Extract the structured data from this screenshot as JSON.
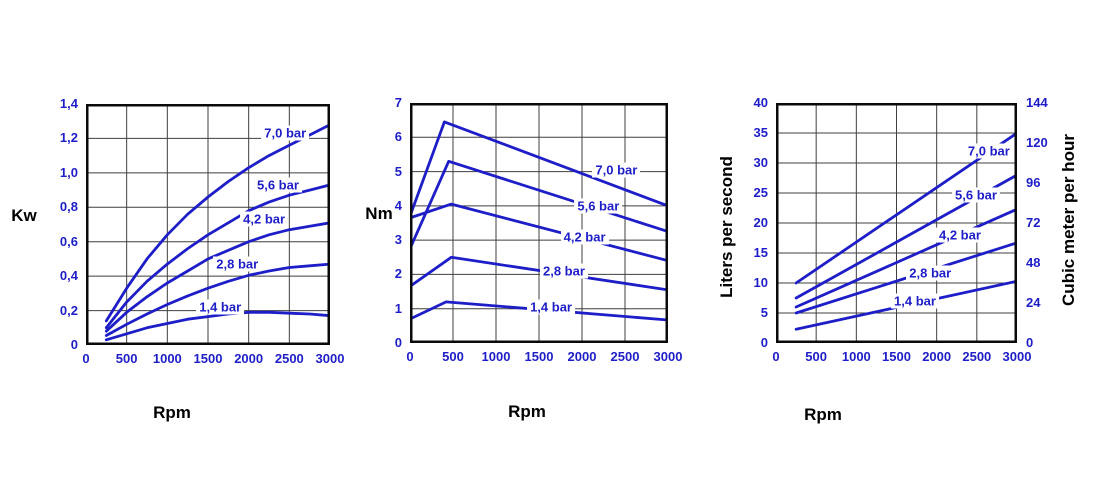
{
  "page": {
    "background": "#ffffff"
  },
  "colors": {
    "curve_blue": "#1e1ec8",
    "tick_blue": "#1e1ec8",
    "grid_gray": "#3f3f3f",
    "border_black": "#0a0a0a",
    "axis_title_black": "#000000"
  },
  "chart_data": [
    {
      "id": "power-vs-rpm",
      "type": "line",
      "y_axis_title": "Kw",
      "x_axis_title": "Rpm",
      "xlim": [
        0,
        3000
      ],
      "ylim": [
        0,
        1.4
      ],
      "grid": true,
      "xticks": [
        0,
        500,
        1000,
        1500,
        2000,
        2500,
        3000
      ],
      "xtick_labels": [
        "0",
        "500",
        "1000",
        "1500",
        "2000",
        "2500",
        "3000"
      ],
      "yticks": [
        0,
        0.2,
        0.4,
        0.6,
        0.8,
        1.0,
        1.2,
        1.4
      ],
      "ytick_labels": [
        "0",
        "0,2",
        "0,4",
        "0,6",
        "0,8",
        "1,0",
        "1,2",
        "1,4"
      ],
      "series": [
        {
          "name": "7,0 bar",
          "points": [
            [
              250,
              0.14
            ],
            [
              500,
              0.33
            ],
            [
              750,
              0.5
            ],
            [
              1000,
              0.64
            ],
            [
              1250,
              0.76
            ],
            [
              1500,
              0.86
            ],
            [
              1750,
              0.95
            ],
            [
              2000,
              1.03
            ],
            [
              2250,
              1.1
            ],
            [
              2500,
              1.16
            ],
            [
              2750,
              1.22
            ],
            [
              3000,
              1.28
            ]
          ]
        },
        {
          "name": "5,6 bar",
          "points": [
            [
              250,
              0.1
            ],
            [
              500,
              0.25
            ],
            [
              750,
              0.37
            ],
            [
              1000,
              0.47
            ],
            [
              1250,
              0.56
            ],
            [
              1500,
              0.64
            ],
            [
              1750,
              0.71
            ],
            [
              2000,
              0.78
            ],
            [
              2250,
              0.83
            ],
            [
              2500,
              0.87
            ],
            [
              2750,
              0.9
            ],
            [
              3000,
              0.93
            ]
          ]
        },
        {
          "name": "4,2 bar",
          "points": [
            [
              250,
              0.08
            ],
            [
              500,
              0.19
            ],
            [
              750,
              0.28
            ],
            [
              1000,
              0.36
            ],
            [
              1250,
              0.43
            ],
            [
              1500,
              0.5
            ],
            [
              1750,
              0.55
            ],
            [
              2000,
              0.6
            ],
            [
              2250,
              0.64
            ],
            [
              2500,
              0.67
            ],
            [
              2750,
              0.69
            ],
            [
              3000,
              0.71
            ]
          ]
        },
        {
          "name": "2,8 bar",
          "points": [
            [
              250,
              0.055
            ],
            [
              500,
              0.12
            ],
            [
              750,
              0.18
            ],
            [
              1000,
              0.235
            ],
            [
              1250,
              0.285
            ],
            [
              1500,
              0.33
            ],
            [
              1750,
              0.37
            ],
            [
              2000,
              0.405
            ],
            [
              2250,
              0.43
            ],
            [
              2500,
              0.45
            ],
            [
              2750,
              0.46
            ],
            [
              3000,
              0.47
            ]
          ]
        },
        {
          "name": "1,4 bar",
          "points": [
            [
              250,
              0.03
            ],
            [
              500,
              0.065
            ],
            [
              750,
              0.1
            ],
            [
              1000,
              0.125
            ],
            [
              1250,
              0.15
            ],
            [
              1500,
              0.165
            ],
            [
              1750,
              0.18
            ],
            [
              2000,
              0.19
            ],
            [
              2250,
              0.19
            ],
            [
              2500,
              0.185
            ],
            [
              2750,
              0.18
            ],
            [
              3000,
              0.17
            ]
          ]
        }
      ],
      "curve_labels": [
        {
          "text": "7,0 bar",
          "x": 2450,
          "y": 1.23
        },
        {
          "text": "5,6 bar",
          "x": 2360,
          "y": 0.93
        },
        {
          "text": "4,2 bar",
          "x": 2190,
          "y": 0.73
        },
        {
          "text": "2,8 bar",
          "x": 1860,
          "y": 0.47
        },
        {
          "text": "1,4 bar",
          "x": 1650,
          "y": 0.22
        }
      ]
    },
    {
      "id": "torque-vs-rpm",
      "type": "line",
      "y_axis_title": "Nm",
      "x_axis_title": "Rpm",
      "xlim": [
        0,
        3000
      ],
      "ylim": [
        0,
        7
      ],
      "grid": true,
      "xticks": [
        0,
        500,
        1000,
        1500,
        2000,
        2500,
        3000
      ],
      "xtick_labels": [
        "0",
        "500",
        "1000",
        "1500",
        "2000",
        "2500",
        "3000"
      ],
      "yticks": [
        0,
        1,
        2,
        3,
        4,
        5,
        6,
        7
      ],
      "ytick_labels": [
        "0",
        "1",
        "2",
        "3",
        "4",
        "5",
        "6",
        "7"
      ],
      "series": [
        {
          "name": "7,0 bar",
          "points": [
            [
              0,
              3.7
            ],
            [
              400,
              6.45
            ],
            [
              3000,
              4.0
            ]
          ]
        },
        {
          "name": "5,6 bar",
          "points": [
            [
              0,
              2.75
            ],
            [
              450,
              5.3
            ],
            [
              3000,
              3.25
            ]
          ]
        },
        {
          "name": "4,2 bar",
          "points": [
            [
              0,
              3.65
            ],
            [
              480,
              4.05
            ],
            [
              3000,
              2.4
            ]
          ]
        },
        {
          "name": "2,8 bar",
          "points": [
            [
              0,
              1.65
            ],
            [
              480,
              2.5
            ],
            [
              3000,
              1.55
            ]
          ]
        },
        {
          "name": "1,4 bar",
          "points": [
            [
              0,
              0.7
            ],
            [
              420,
              1.2
            ],
            [
              3000,
              0.67
            ]
          ]
        }
      ],
      "curve_labels": [
        {
          "text": "7,0 bar",
          "x": 2400,
          "y": 5.05
        },
        {
          "text": "5,6 bar",
          "x": 2190,
          "y": 4.0
        },
        {
          "text": "4,2 bar",
          "x": 2030,
          "y": 3.08
        },
        {
          "text": "2,8 bar",
          "x": 1790,
          "y": 2.1
        },
        {
          "text": "1,4 bar",
          "x": 1640,
          "y": 1.05
        }
      ]
    },
    {
      "id": "air-consumption-vs-rpm",
      "type": "line",
      "y_axis_title": "Liters per second",
      "y2_axis_title": "Cubic meter per hour",
      "x_axis_title": "Rpm",
      "xlim": [
        0,
        3000
      ],
      "ylim": [
        0,
        40
      ],
      "y2lim": [
        0,
        144
      ],
      "grid": true,
      "xticks": [
        0,
        500,
        1000,
        1500,
        2000,
        2500,
        3000
      ],
      "xtick_labels": [
        "0",
        "500",
        "1000",
        "1500",
        "2000",
        "2500",
        "3000"
      ],
      "yticks": [
        0,
        5,
        10,
        15,
        20,
        25,
        30,
        35,
        40
      ],
      "ytick_labels": [
        "0",
        "5",
        "10",
        "15",
        "20",
        "25",
        "30",
        "35",
        "40"
      ],
      "y2ticks": [
        0,
        24,
        48,
        72,
        96,
        120,
        144
      ],
      "y2tick_labels": [
        "0",
        "24",
        "48",
        "72",
        "96",
        "120",
        "144"
      ],
      "series": [
        {
          "name": "7,0 bar",
          "points": [
            [
              250,
              10
            ],
            [
              3000,
              35
            ]
          ]
        },
        {
          "name": "5,6 bar",
          "points": [
            [
              250,
              7.5
            ],
            [
              3000,
              28
            ]
          ]
        },
        {
          "name": "4,2 bar",
          "points": [
            [
              250,
              6.0
            ],
            [
              3000,
              22.3
            ]
          ]
        },
        {
          "name": "2,8 bar",
          "points": [
            [
              250,
              5.0
            ],
            [
              3000,
              16.7
            ]
          ]
        },
        {
          "name": "1,4 bar",
          "points": [
            [
              250,
              2.3
            ],
            [
              3000,
              10.3
            ]
          ]
        }
      ],
      "curve_labels": [
        {
          "text": "7,0 bar",
          "x": 2650,
          "y": 32
        },
        {
          "text": "5,6 bar",
          "x": 2490,
          "y": 24.6
        },
        {
          "text": "4,2 bar",
          "x": 2290,
          "y": 18
        },
        {
          "text": "2,8 bar",
          "x": 1920,
          "y": 11.7
        },
        {
          "text": "1,4 bar",
          "x": 1730,
          "y": 7.0
        }
      ]
    }
  ]
}
